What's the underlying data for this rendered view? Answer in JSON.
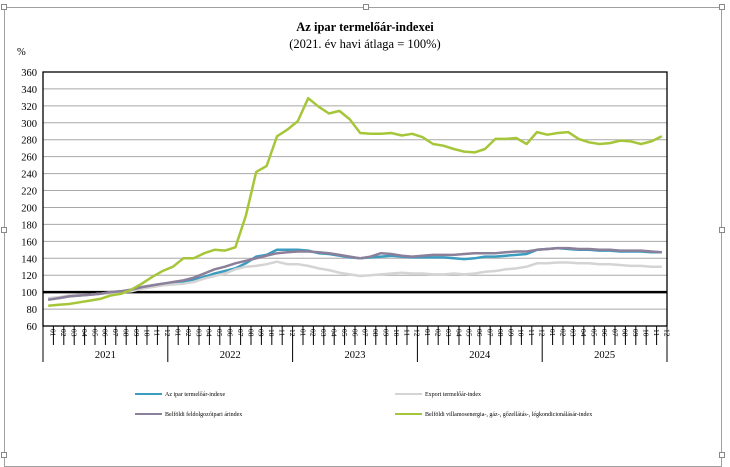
{
  "chart_data": {
    "type": "line",
    "title": "Az ipar  termelőár-indexei",
    "subtitle": "(2021. év havi átlaga = 100%)",
    "ylabel": "%",
    "ylim": [
      60,
      360
    ],
    "yticks": [
      "60",
      "80",
      "100",
      "120",
      "140",
      "160",
      "180",
      "200",
      "220",
      "240",
      "260",
      "280",
      "300",
      "320",
      "340",
      "360"
    ],
    "grid": true,
    "reference_line": 100,
    "years": [
      "2021",
      "2022",
      "2023",
      "2024",
      "2025"
    ],
    "months": [
      "01",
      "02",
      "03",
      "04",
      "05",
      "06",
      "07",
      "08",
      "09",
      "10",
      "11",
      "12"
    ],
    "legend_placement": "bottom",
    "series": [
      {
        "name": "Az ipar termelőár-indexe",
        "color": "#3b9cc0",
        "values": [
          92,
          93,
          95,
          96,
          97,
          98,
          100,
          101,
          102,
          106,
          108,
          110,
          111,
          112,
          115,
          118,
          122,
          125,
          128,
          134,
          142,
          144,
          150,
          150,
          150,
          149,
          146,
          145,
          143,
          141,
          140,
          141,
          142,
          143,
          142,
          141,
          141,
          141,
          141,
          140,
          139,
          140,
          142,
          142,
          143,
          144,
          145,
          150,
          151,
          152,
          151,
          150,
          150,
          149,
          149,
          148,
          148,
          148,
          147,
          147
        ]
      },
      {
        "name": "Export termelőár-index",
        "color": "#d4d4d4",
        "values": [
          93,
          94,
          96,
          97,
          97,
          98,
          99,
          100,
          101,
          104,
          106,
          108,
          109,
          110,
          112,
          116,
          119,
          122,
          127,
          130,
          131,
          133,
          136,
          133,
          133,
          131,
          128,
          126,
          123,
          121,
          119,
          120,
          121,
          122,
          123,
          122,
          122,
          121,
          121,
          122,
          121,
          122,
          124,
          125,
          127,
          128,
          130,
          134,
          134,
          135,
          135,
          134,
          134,
          133,
          133,
          132,
          131,
          131,
          130,
          130
        ]
      },
      {
        "name": "Belföldi feldolgozóipari árindex",
        "color": "#8c7f99",
        "values": [
          91,
          93,
          95,
          96,
          97,
          98,
          100,
          101,
          103,
          106,
          108,
          110,
          112,
          114,
          117,
          122,
          127,
          130,
          134,
          137,
          140,
          143,
          146,
          147,
          148,
          148,
          147,
          146,
          144,
          142,
          140,
          142,
          146,
          145,
          143,
          142,
          143,
          144,
          144,
          144,
          145,
          146,
          146,
          146,
          147,
          148,
          148,
          150,
          151,
          152,
          152,
          151,
          151,
          150,
          150,
          149,
          149,
          149,
          148,
          147
        ]
      },
      {
        "name": "Belföldi villamosenergia-, gáz-, gőzellátás-, légkondicionálásár-index",
        "color": "#a6c63a",
        "values": [
          84,
          85,
          86,
          88,
          90,
          92,
          96,
          98,
          103,
          110,
          118,
          125,
          130,
          140,
          140,
          146,
          150,
          149,
          153,
          190,
          242,
          249,
          284,
          292,
          302,
          329,
          319,
          311,
          314,
          304,
          288,
          287,
          287,
          288,
          285,
          287,
          283,
          275,
          273,
          269,
          266,
          265,
          269,
          281,
          281,
          282,
          275,
          289,
          286,
          288,
          289,
          281,
          277,
          275,
          276,
          279,
          278,
          275,
          278,
          284
        ]
      }
    ]
  }
}
